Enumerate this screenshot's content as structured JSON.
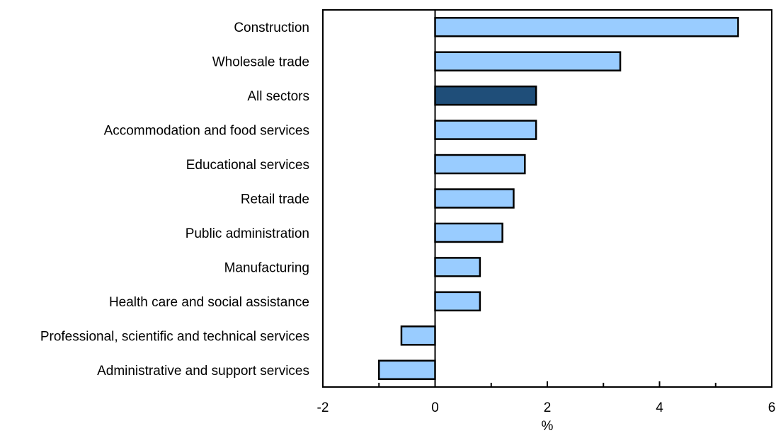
{
  "chart_data": {
    "type": "bar",
    "orientation": "horizontal",
    "title": "",
    "xlabel": "%",
    "ylabel": "",
    "xlim": [
      -2,
      6
    ],
    "x_ticks": [
      -2,
      0,
      2,
      4,
      6
    ],
    "x_tick_labels": [
      "-2",
      "0",
      "2",
      "4",
      "6"
    ],
    "grid": false,
    "categories": [
      "Construction",
      "Wholesale trade",
      "All sectors",
      "Accommodation and food services",
      "Educational services",
      "Retail trade",
      "Public administration",
      "Manufacturing",
      "Health care and social assistance",
      "Professional, scientific and technical services",
      "Administrative and support services"
    ],
    "values": [
      5.4,
      3.3,
      1.8,
      1.8,
      1.6,
      1.4,
      1.2,
      0.8,
      0.8,
      -0.6,
      -1.0
    ],
    "highlight_category": "All sectors",
    "colors": {
      "bar": "#99ccff",
      "highlight": "#1f4e79",
      "outline": "#000000"
    }
  }
}
